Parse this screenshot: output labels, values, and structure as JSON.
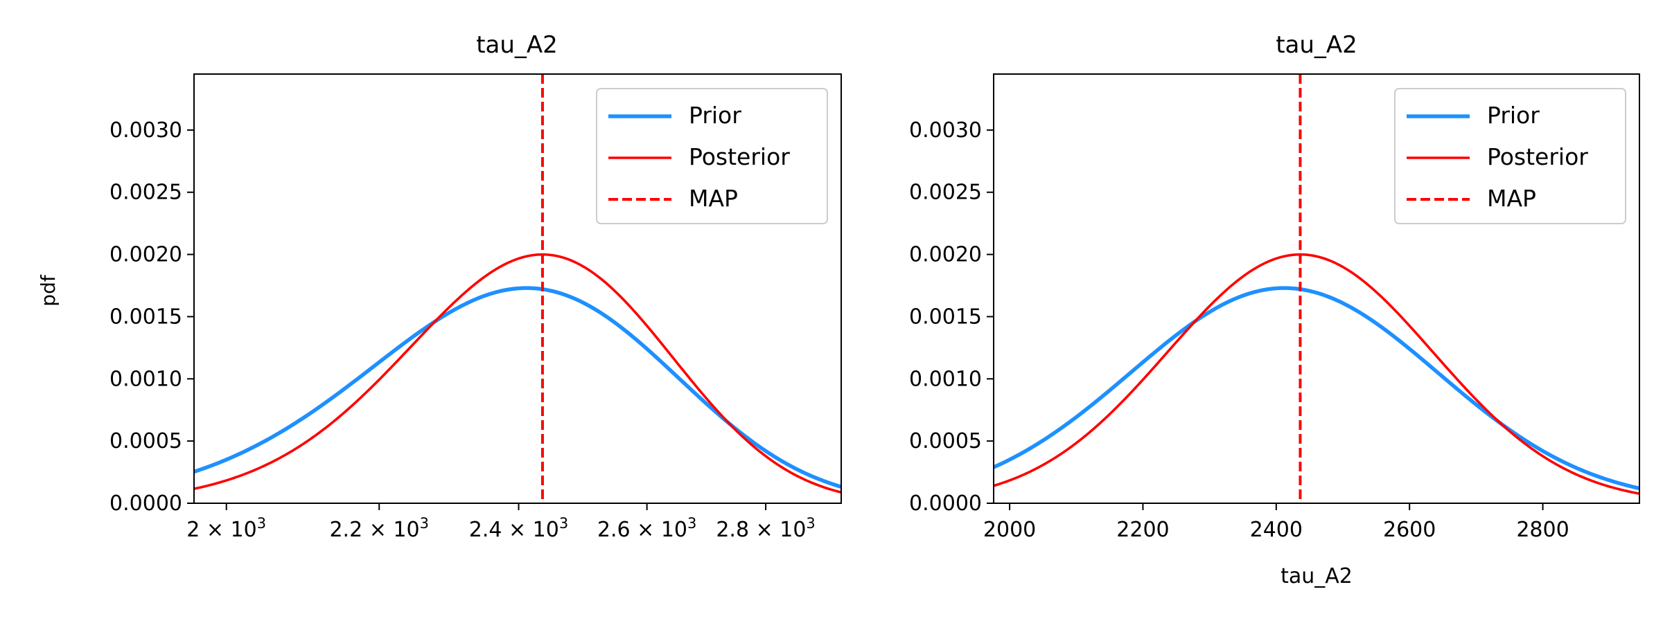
{
  "chart_data": [
    {
      "type": "line",
      "title": "tau_A2",
      "xlabel": "",
      "ylabel": "pdf",
      "x_scale": "log",
      "xlim": [
        1960,
        2935
      ],
      "ylim": [
        0,
        0.00345
      ],
      "x_ticks": [
        {
          "value": 2000,
          "mantissa": "2",
          "label": "2 × 10³"
        },
        {
          "value": 2200,
          "mantissa": "2.2",
          "label": "2.2 × 10³"
        },
        {
          "value": 2400,
          "mantissa": "2.4",
          "label": "2.4 × 10³"
        },
        {
          "value": 2600,
          "mantissa": "2.6",
          "label": "2.6 × 10³"
        },
        {
          "value": 2800,
          "mantissa": "2.8",
          "label": "2.8 × 10³"
        }
      ],
      "x_tick_times": "×",
      "x_tick_base": "10",
      "x_tick_exponent": "3",
      "y_ticks": [
        "0.0000",
        "0.0005",
        "0.0010",
        "0.0015",
        "0.0020",
        "0.0025",
        "0.0030"
      ],
      "y_tick_values": [
        0,
        0.0005,
        0.001,
        0.0015,
        0.002,
        0.0025,
        0.003
      ],
      "series": [
        {
          "name": "Prior",
          "style": "solid",
          "color": "#1e90ff",
          "distribution": "normal",
          "mean": 2412,
          "sd": 230.6,
          "x_range": [
            1960,
            2935
          ]
        },
        {
          "name": "Posterior",
          "style": "solid",
          "color": "#ff0000",
          "distribution": "normal",
          "mean": 2436,
          "sd": 199.5,
          "x_range": [
            1960,
            2935
          ]
        }
      ],
      "vlines": [
        {
          "name": "MAP",
          "x": 2436,
          "style": "dashed",
          "color": "#ff0000"
        }
      ],
      "legend": {
        "position": "upper right",
        "entries": [
          "Prior",
          "Posterior",
          "MAP"
        ]
      },
      "grid": false
    },
    {
      "type": "line",
      "title": "tau_A2",
      "xlabel": "tau_A2",
      "ylabel": "",
      "x_scale": "linear",
      "xlim": [
        1976,
        2945
      ],
      "ylim": [
        0,
        0.00345
      ],
      "x_ticks": [
        {
          "value": 2000,
          "label": "2000"
        },
        {
          "value": 2200,
          "label": "2200"
        },
        {
          "value": 2400,
          "label": "2400"
        },
        {
          "value": 2600,
          "label": "2600"
        },
        {
          "value": 2800,
          "label": "2800"
        }
      ],
      "y_ticks": [
        "0.0000",
        "0.0005",
        "0.0010",
        "0.0015",
        "0.0020",
        "0.0025",
        "0.0030"
      ],
      "y_tick_values": [
        0,
        0.0005,
        0.001,
        0.0015,
        0.002,
        0.0025,
        0.003
      ],
      "series": [
        {
          "name": "Prior",
          "style": "solid",
          "color": "#1e90ff",
          "distribution": "normal",
          "mean": 2412,
          "sd": 230.6,
          "x_range": [
            1976,
            2945
          ]
        },
        {
          "name": "Posterior",
          "style": "solid",
          "color": "#ff0000",
          "distribution": "normal",
          "mean": 2436,
          "sd": 199.5,
          "x_range": [
            1976,
            2945
          ]
        }
      ],
      "vlines": [
        {
          "name": "MAP",
          "x": 2436,
          "style": "dashed",
          "color": "#ff0000"
        }
      ],
      "legend": {
        "position": "upper right",
        "entries": [
          "Prior",
          "Posterior",
          "MAP"
        ]
      },
      "grid": false
    }
  ]
}
